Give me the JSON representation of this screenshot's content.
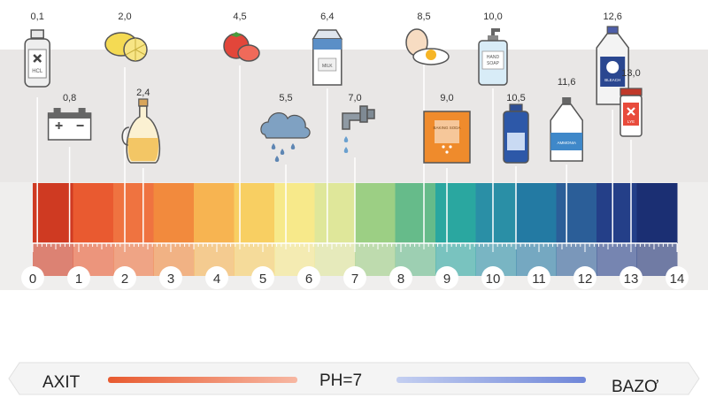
{
  "scale": {
    "min": 0,
    "max": 14,
    "ticks": [
      "0",
      "1",
      "2",
      "3",
      "4",
      "5",
      "6",
      "7",
      "8",
      "9",
      "10",
      "11",
      "12",
      "13",
      "14"
    ],
    "colors": [
      "#cf3a22",
      "#e95a30",
      "#ef7340",
      "#f28a3d",
      "#f7b451",
      "#f8cf62",
      "#f7e98a",
      "#dfe79a",
      "#9ccf84",
      "#66bb8a",
      "#2aa7a0",
      "#2a8fa6",
      "#237aa3",
      "#2b5e98",
      "#243f88",
      "#1b2f73"
    ]
  },
  "items": [
    {
      "ph": 0.1,
      "label": "0,1",
      "icon": "hcl-bottle-icon",
      "text": "HCL",
      "position": "high"
    },
    {
      "ph": 0.8,
      "label": "0,8",
      "icon": "car-battery-icon",
      "position": "low"
    },
    {
      "ph": 2.0,
      "label": "2,0",
      "icon": "lemon-icon",
      "position": "high"
    },
    {
      "ph": 2.4,
      "label": "2,4",
      "icon": "vinegar-cruet-icon",
      "position": "low"
    },
    {
      "ph": 4.5,
      "label": "4,5",
      "icon": "tomato-icon",
      "position": "high"
    },
    {
      "ph": 5.5,
      "label": "5,5",
      "icon": "rain-cloud-icon",
      "position": "low"
    },
    {
      "ph": 6.4,
      "label": "6,4",
      "icon": "milk-carton-icon",
      "text": "MILK",
      "position": "high"
    },
    {
      "ph": 7.0,
      "label": "7,0",
      "icon": "water-tap-icon",
      "position": "low"
    },
    {
      "ph": 8.5,
      "label": "8,5",
      "icon": "egg-icon",
      "position": "high"
    },
    {
      "ph": 9.0,
      "label": "9,0",
      "icon": "baking-soda-icon",
      "text": "BAKING SODA",
      "position": "low"
    },
    {
      "ph": 10.0,
      "label": "10,0",
      "icon": "hand-soap-icon",
      "text": "HAND SOAP",
      "position": "high"
    },
    {
      "ph": 10.5,
      "label": "10,5",
      "icon": "magnesia-bottle-icon",
      "position": "low"
    },
    {
      "ph": 11.6,
      "label": "11,6",
      "icon": "ammonia-bottle-icon",
      "text": "AMMONIA",
      "position": "low"
    },
    {
      "ph": 12.6,
      "label": "12,6",
      "icon": "bleach-jug-icon",
      "text": "BLEACH",
      "position": "high"
    },
    {
      "ph": 13.0,
      "label": "13,0",
      "icon": "lye-jar-icon",
      "text": "LYE",
      "position": "low"
    }
  ],
  "footer": {
    "acid": "AXIT",
    "neutral": "PH=7",
    "base": "BAZƠ",
    "acid_color": "#ef6a3b",
    "base_color": "#6f86d8"
  }
}
